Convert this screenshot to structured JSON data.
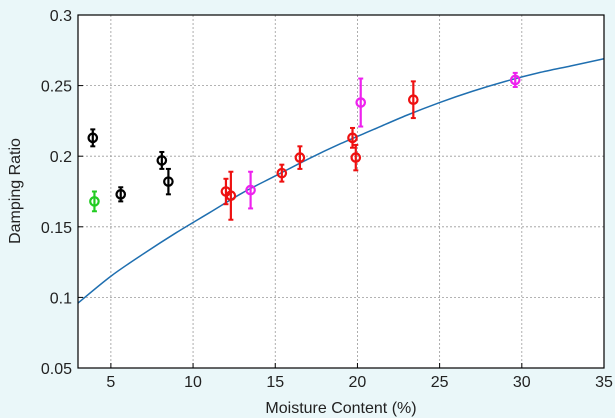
{
  "chart_data": {
    "type": "scatter",
    "title": "",
    "xlabel": "Moisture Content (%)",
    "ylabel": "Damping Ratio",
    "xlim": [
      3,
      35
    ],
    "ylim": [
      0.05,
      0.3
    ],
    "xticks": [
      5,
      10,
      15,
      20,
      25,
      30,
      35
    ],
    "yticks": [
      0.05,
      0.1,
      0.15,
      0.2,
      0.25,
      0.3
    ],
    "ytick_labels": [
      "0.05",
      "0.1",
      "0.15",
      "0.2",
      "0.25",
      "0.3"
    ],
    "grid": true,
    "legend": "none",
    "series": [
      {
        "color": "#000000",
        "points": [
          {
            "x": 3.9,
            "y": 0.213,
            "err": 0.006
          },
          {
            "x": 5.6,
            "y": 0.173,
            "err": 0.005
          },
          {
            "x": 8.1,
            "y": 0.197,
            "err": 0.006
          },
          {
            "x": 8.5,
            "y": 0.182,
            "err": 0.009
          }
        ]
      },
      {
        "color": "#22cc22",
        "points": [
          {
            "x": 4.0,
            "y": 0.168,
            "err": 0.007
          }
        ]
      },
      {
        "color": "#ee1111",
        "points": [
          {
            "x": 12.0,
            "y": 0.175,
            "err": 0.009
          },
          {
            "x": 12.3,
            "y": 0.172,
            "err": 0.017
          },
          {
            "x": 15.4,
            "y": 0.188,
            "err": 0.006
          },
          {
            "x": 16.5,
            "y": 0.199,
            "err": 0.008
          },
          {
            "x": 19.7,
            "y": 0.213,
            "err": 0.007
          },
          {
            "x": 19.9,
            "y": 0.199,
            "err": 0.009
          },
          {
            "x": 23.4,
            "y": 0.24,
            "err": 0.013
          }
        ]
      },
      {
        "color": "#ee22ee",
        "points": [
          {
            "x": 13.5,
            "y": 0.176,
            "err": 0.013
          },
          {
            "x": 20.2,
            "y": 0.238,
            "err": 0.017
          },
          {
            "x": 29.6,
            "y": 0.254,
            "err": 0.005
          }
        ]
      }
    ],
    "fit_curve": {
      "color": "#1f6fb0",
      "x": [
        3,
        5,
        7,
        9,
        11,
        13,
        15,
        17,
        19,
        21,
        23,
        25,
        27,
        29,
        31,
        33,
        35
      ],
      "y": [
        0.096,
        0.115,
        0.131,
        0.146,
        0.16,
        0.174,
        0.186,
        0.198,
        0.209,
        0.219,
        0.229,
        0.238,
        0.246,
        0.253,
        0.259,
        0.264,
        0.269
      ]
    }
  }
}
